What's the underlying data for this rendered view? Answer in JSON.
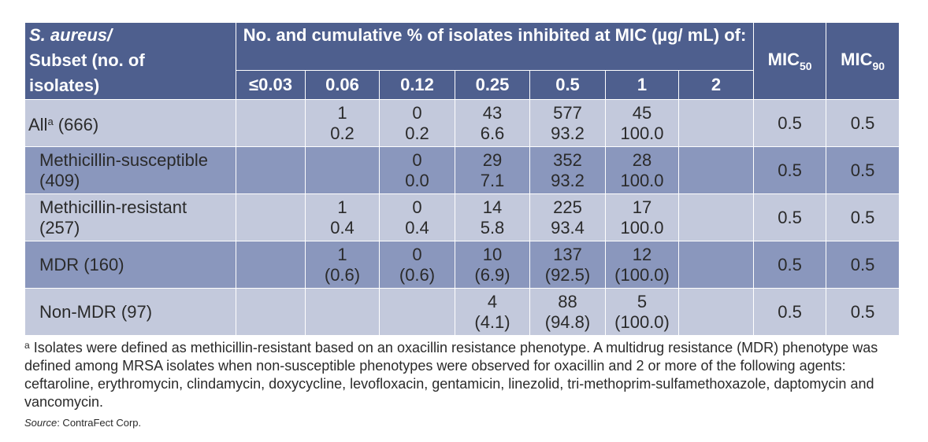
{
  "header": {
    "subset_col": [
      "S. aureus/",
      "Subset (no. of",
      "isolates)"
    ],
    "span_title": "No. and cumulative % of isolates inhibited at MIC (µg/ mL) of:",
    "concentrations": [
      "≤0.03",
      "0.06",
      "0.12",
      "0.25",
      "0.5",
      "1",
      "2"
    ],
    "mic50": {
      "base": "MIC",
      "sub": "50"
    },
    "mic90": {
      "base": "MIC",
      "sub": "90"
    }
  },
  "rows": [
    {
      "name": "All",
      "sup": "a",
      "name_rest": " (666)",
      "cells": [
        [
          "",
          ""
        ],
        [
          "1",
          "0.2"
        ],
        [
          "0",
          "0.2"
        ],
        [
          "43",
          "6.6"
        ],
        [
          "577",
          "93.2"
        ],
        [
          "45",
          "100.0"
        ],
        [
          "",
          ""
        ]
      ],
      "mic50": "0.5",
      "mic90": "0.5"
    },
    {
      "name": "Methicillin-susceptible",
      "name2": "(409)",
      "cells": [
        [
          "",
          ""
        ],
        [
          "",
          ""
        ],
        [
          "0",
          "0.0"
        ],
        [
          "29",
          "7.1"
        ],
        [
          "352",
          "93.2"
        ],
        [
          "28",
          "100.0"
        ],
        [
          "",
          ""
        ]
      ],
      "mic50": "0.5",
      "mic90": "0.5"
    },
    {
      "name": "Methicillin-resistant",
      "name2": "(257)",
      "cells": [
        [
          "",
          ""
        ],
        [
          "1",
          "0.4"
        ],
        [
          "0",
          "0.4"
        ],
        [
          "14",
          "5.8"
        ],
        [
          "225",
          "93.4"
        ],
        [
          "17",
          "100.0"
        ],
        [
          "",
          ""
        ]
      ],
      "mic50": "0.5",
      "mic90": "0.5"
    },
    {
      "name": "MDR (160)",
      "cells": [
        [
          "",
          ""
        ],
        [
          "1",
          "(0.6)"
        ],
        [
          "0",
          "(0.6)"
        ],
        [
          "10",
          "(6.9)"
        ],
        [
          "137",
          "(92.5)"
        ],
        [
          "12",
          "(100.0)"
        ],
        [
          "",
          ""
        ]
      ],
      "mic50": "0.5",
      "mic90": "0.5"
    },
    {
      "name": "Non-MDR (97)",
      "cells": [
        [
          "",
          ""
        ],
        [
          "",
          ""
        ],
        [
          "",
          ""
        ],
        [
          "4",
          "(4.1)"
        ],
        [
          "88",
          "(94.8)"
        ],
        [
          "5",
          "(100.0)"
        ],
        [
          "",
          ""
        ]
      ],
      "mic50": "0.5",
      "mic90": "0.5"
    }
  ],
  "footnote": {
    "mark": "a",
    "text": " Isolates were defined as methicillin-resistant based on an oxacillin resistance phenotype. A multidrug resistance (MDR) phenotype was defined among MRSA isolates when non-susceptible phenotypes were observed for oxacillin and 2 or more of the following agents: ceftaroline, erythromycin, clindamycin, doxycycline, levofloxacin, gentamicin, linezolid, tri-methoprim-sulfamethoxazole, daptomycin and vancomycin."
  },
  "source": {
    "label": "Source",
    "text": ": ContraFect Corp."
  },
  "colors": {
    "header_bg": "#4e5f8e",
    "row_light": "#c3c9dc",
    "row_dark": "#8a97bd"
  }
}
